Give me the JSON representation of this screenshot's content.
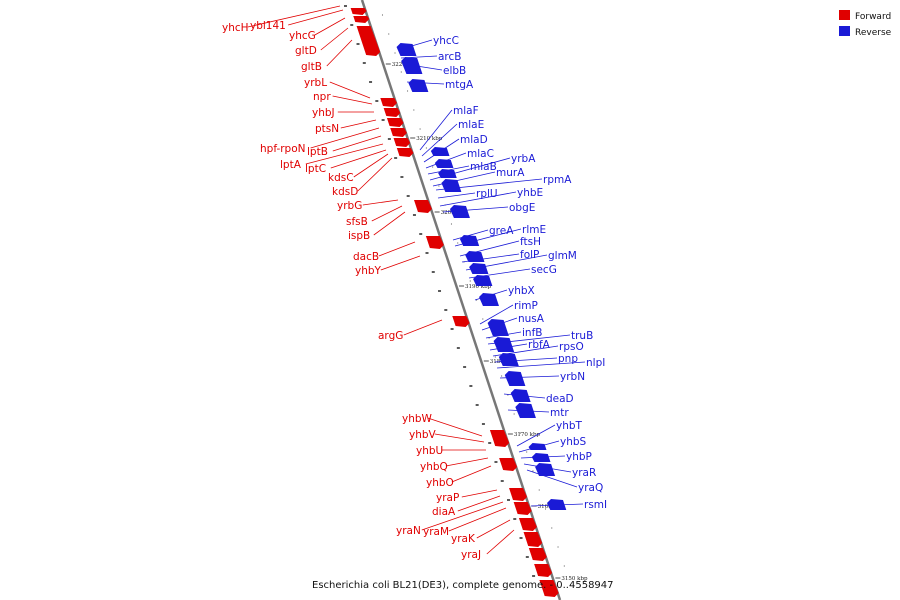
{
  "legend": {
    "forward_label": "Forward",
    "reverse_label": "Reverse",
    "forward_color": "#e00000",
    "reverse_color": "#1a1ad6"
  },
  "caption": "Escherichia coli BL21(DE3), complete genome. - 0..4558947",
  "scale_marks": [
    "3220 kbp",
    "3210 kbp",
    "3200 kbp",
    "3190 kbp",
    "3180 kbp",
    "3170 kbp",
    "3160 kbp",
    "3150 kbp"
  ],
  "forward_genes": [
    "yhcH",
    "ybl141",
    "yhcG",
    "gltD",
    "gltB",
    "yrbL",
    "npr",
    "yhbJ",
    "ptsN",
    "hpf-rpoN",
    "lptB",
    "lptA",
    "lptC",
    "kdsC",
    "kdsD",
    "yrbG",
    "sfsB",
    "ispB",
    "dacB",
    "yhbY",
    "argG",
    "yhbW",
    "yhbV",
    "yhbU",
    "yhbQ",
    "yhbO",
    "yraP",
    "diaA",
    "yraN",
    "yraM",
    "yraK",
    "yraJ"
  ],
  "reverse_genes": [
    "yhcC",
    "arcB",
    "elbB",
    "mtgA",
    "mlaF",
    "mlaE",
    "mlaD",
    "mlaC",
    "mlaB",
    "yrbA",
    "murA",
    "rpmA",
    "rplU",
    "yhbE",
    "obgE",
    "greA",
    "rlmE",
    "ftsH",
    "folP",
    "glmM",
    "secG",
    "yhbX",
    "rimP",
    "nusA",
    "infB",
    "truB",
    "rbfA",
    "rpsO",
    "pnp",
    "nlpI",
    "yrbN",
    "deaD",
    "mtr",
    "yhbT",
    "yhbS",
    "yhbP",
    "yraR",
    "yraQ",
    "rsmI"
  ]
}
